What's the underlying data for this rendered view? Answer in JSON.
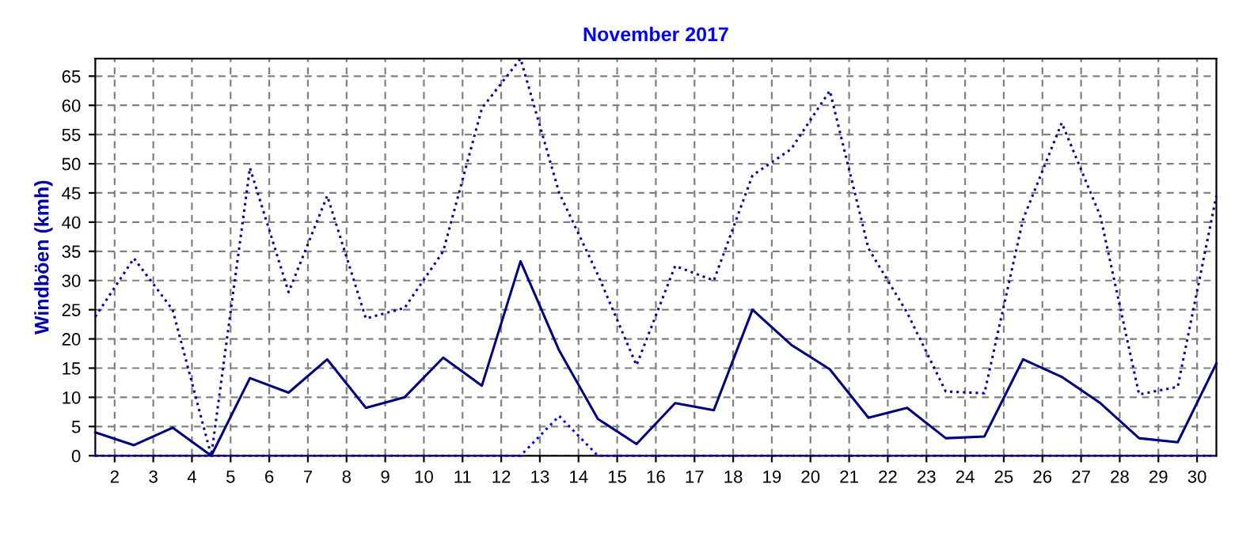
{
  "chart_data": {
    "type": "line",
    "title": "November 2017",
    "ylabel": "Windböen (kmh)",
    "x": [
      1.5,
      2.5,
      3.5,
      4.5,
      5.5,
      6.5,
      7.5,
      8.5,
      9.5,
      10.5,
      11.5,
      12.5,
      13.5,
      14.5,
      15.5,
      16.5,
      17.5,
      18.5,
      19.5,
      20.5,
      21.5,
      22.5,
      23.5,
      24.5,
      25.5,
      26.5,
      27.5,
      28.5,
      29.5,
      30.5
    ],
    "series": [
      {
        "color": "#000080",
        "line_style": "solid",
        "values": [
          4,
          1.8,
          4.8,
          0,
          13.3,
          10.8,
          16.5,
          8.2,
          10,
          16.8,
          12,
          33.3,
          18,
          6.3,
          2,
          9,
          7.8,
          25,
          19,
          14.8,
          6.5,
          8.2,
          3,
          3.3,
          16.5,
          13.5,
          9,
          3,
          2.3,
          15.8
        ]
      },
      {
        "color": "#0000a0",
        "line_style": "dotted",
        "values": [
          23.8,
          33.8,
          25,
          0,
          49.3,
          28,
          44.5,
          23.5,
          25.3,
          35,
          59.5,
          68,
          45,
          31,
          15.5,
          32.5,
          30,
          48,
          52.5,
          62.5,
          35.5,
          24.5,
          11,
          10.7,
          40.5,
          57,
          41,
          10.5,
          11.8,
          44.5
        ]
      },
      {
        "color": "#0000ff",
        "line_style": "dotted",
        "values": [
          0,
          0,
          0,
          0,
          0,
          0,
          0,
          0,
          0,
          0,
          0,
          0,
          6.8,
          0,
          0,
          0,
          0,
          0,
          0,
          0,
          0,
          0,
          0,
          0,
          0,
          0,
          0,
          0,
          0,
          0
        ]
      }
    ],
    "xlim": [
      1.5,
      30.5
    ],
    "xticks": [
      2,
      3,
      4,
      5,
      6,
      7,
      8,
      9,
      10,
      11,
      12,
      13,
      14,
      15,
      16,
      17,
      18,
      19,
      20,
      21,
      22,
      23,
      24,
      25,
      26,
      27,
      28,
      29,
      30
    ],
    "ylim": [
      0,
      68
    ],
    "yticks": [
      0,
      5,
      10,
      15,
      20,
      25,
      30,
      35,
      40,
      45,
      50,
      55,
      60,
      65
    ],
    "grid": true,
    "marker": "none"
  }
}
